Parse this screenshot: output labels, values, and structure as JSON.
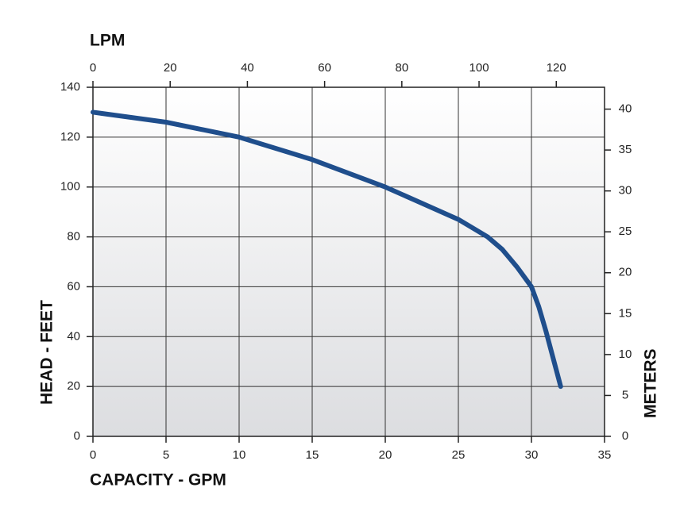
{
  "chart_data": {
    "type": "line",
    "x_label": "CAPACITY - GPM",
    "x2_label": "LPM",
    "y_label": "HEAD - FEET",
    "y2_label": "METERS",
    "x": [
      0,
      5,
      10,
      15,
      20,
      25,
      27,
      28,
      29,
      30,
      30.5,
      31,
      31.5,
      32
    ],
    "series": [
      {
        "color": "#1f4e8c",
        "values": [
          130,
          126,
          120,
          111,
          100,
          87,
          80,
          75,
          68,
          60,
          52,
          42,
          31,
          20
        ]
      }
    ],
    "xlim": [
      0,
      35
    ],
    "xticks": [
      0,
      5,
      10,
      15,
      20,
      25,
      30,
      35
    ],
    "x2lim": [
      0,
      132.5
    ],
    "x2ticks": [
      0,
      20,
      40,
      60,
      80,
      100,
      120
    ],
    "ylim": [
      0,
      140
    ],
    "yticks": [
      0,
      20,
      40,
      60,
      80,
      100,
      120,
      140
    ],
    "y2lim": [
      0,
      42.67
    ],
    "y2ticks": [
      0,
      5,
      10,
      15,
      20,
      25,
      30,
      35,
      40
    ],
    "grid": true
  }
}
